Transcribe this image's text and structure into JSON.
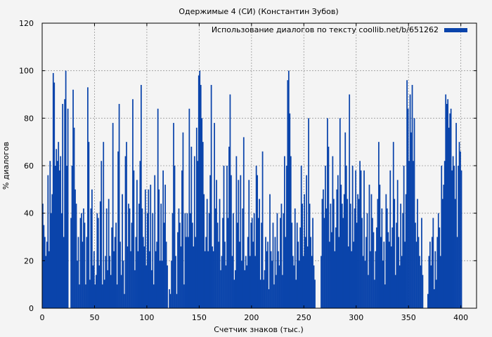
{
  "chart_data": {
    "type": "bar",
    "title": "Одержимые 4 (СИ) (Константин Зубов)",
    "xlabel": "Счетчик знаков (тыс.)",
    "ylabel": "% диалогов",
    "xlim": [
      0,
      415
    ],
    "ylim": [
      0,
      120
    ],
    "xticks": [
      "0",
      "50",
      "100",
      "150",
      "200",
      "250",
      "300",
      "350",
      "400"
    ],
    "yticks": [
      "0",
      "20",
      "40",
      "60",
      "80",
      "100",
      "120"
    ],
    "grid": true,
    "legend_position": "top-right",
    "series": [
      {
        "name": "Использование диалогов по тексту coollib.net/b/651262",
        "color": "#0a44ab",
        "bin_width": 1,
        "values": [
          44,
          35,
          30,
          22,
          28,
          56,
          24,
          62,
          40,
          48,
          99,
          95,
          60,
          67,
          62,
          70,
          58,
          64,
          40,
          86,
          30,
          88,
          100,
          60,
          84,
          0,
          0,
          38,
          60,
          92,
          76,
          50,
          44,
          20,
          30,
          10,
          38,
          40,
          28,
          42,
          36,
          10,
          30,
          93,
          70,
          12,
          42,
          50,
          18,
          24,
          10,
          14,
          40,
          38,
          18,
          45,
          62,
          10,
          70,
          12,
          22,
          42,
          16,
          46,
          22,
          14,
          34,
          78,
          24,
          30,
          36,
          10,
          66,
          86,
          28,
          14,
          48,
          20,
          6,
          64,
          70,
          26,
          44,
          42,
          24,
          36,
          88,
          58,
          16,
          30,
          54,
          24,
          44,
          62,
          94,
          42,
          30,
          26,
          50,
          18,
          40,
          50,
          24,
          52,
          16,
          40,
          10,
          56,
          24,
          28,
          84,
          50,
          20,
          44,
          20,
          58,
          36,
          52,
          28,
          18,
          0,
          8,
          6,
          20,
          40,
          78,
          60,
          22,
          6,
          32,
          42,
          36,
          26,
          58,
          74,
          10,
          40,
          30,
          40,
          30,
          84,
          40,
          68,
          36,
          26,
          64,
          30,
          76,
          62,
          98,
          100,
          94,
          80,
          70,
          48,
          24,
          30,
          46,
          24,
          40,
          56,
          94,
          26,
          24,
          78,
          42,
          54,
          36,
          28,
          46,
          16,
          22,
          38,
          60,
          28,
          18,
          60,
          38,
          68,
          90,
          56,
          22,
          40,
          12,
          16,
          64,
          36,
          54,
          28,
          56,
          20,
          42,
          72,
          16,
          22,
          18,
          30,
          54,
          22,
          36,
          38,
          28,
          40,
          22,
          60,
          56,
          38,
          46,
          12,
          36,
          66,
          12,
          16,
          30,
          24,
          28,
          8,
          48,
          24,
          20,
          36,
          10,
          30,
          14,
          40,
          24,
          18,
          38,
          44,
          14,
          40,
          64,
          30,
          60,
          96,
          100,
          82,
          64,
          36,
          22,
          18,
          42,
          12,
          36,
          28,
          20,
          34,
          60,
          44,
          22,
          48,
          30,
          56,
          26,
          80,
          44,
          30,
          22,
          38,
          18,
          12,
          0,
          0,
          0,
          0,
          0,
          22,
          46,
          50,
          38,
          60,
          42,
          80,
          68,
          28,
          44,
          32,
          64,
          46,
          24,
          34,
          50,
          56,
          30,
          80,
          52,
          44,
          38,
          48,
          74,
          60,
          46,
          26,
          90,
          44,
          24,
          60,
          28,
          42,
          58,
          36,
          48,
          46,
          62,
          58,
          38,
          22,
          58,
          20,
          30,
          40,
          14,
          52,
          24,
          48,
          38,
          32,
          12,
          24,
          34,
          46,
          70,
          52,
          30,
          42,
          20,
          28,
          10,
          48,
          42,
          32,
          28,
          58,
          26,
          34,
          70,
          46,
          14,
          36,
          54,
          30,
          18,
          44,
          22,
          40,
          60,
          28,
          48,
          96,
          84,
          62,
          90,
          74,
          94,
          62,
          80,
          36,
          28,
          46,
          30,
          22,
          18,
          38,
          14,
          0,
          0,
          0,
          0,
          6,
          22,
          28,
          18,
          30,
          38,
          8,
          24,
          12,
          30,
          40,
          34,
          22,
          60,
          46,
          52,
          62,
          90,
          86,
          88,
          76,
          82,
          84,
          58,
          64,
          60,
          46,
          78,
          30,
          60,
          70,
          66,
          58
        ]
      }
    ]
  }
}
